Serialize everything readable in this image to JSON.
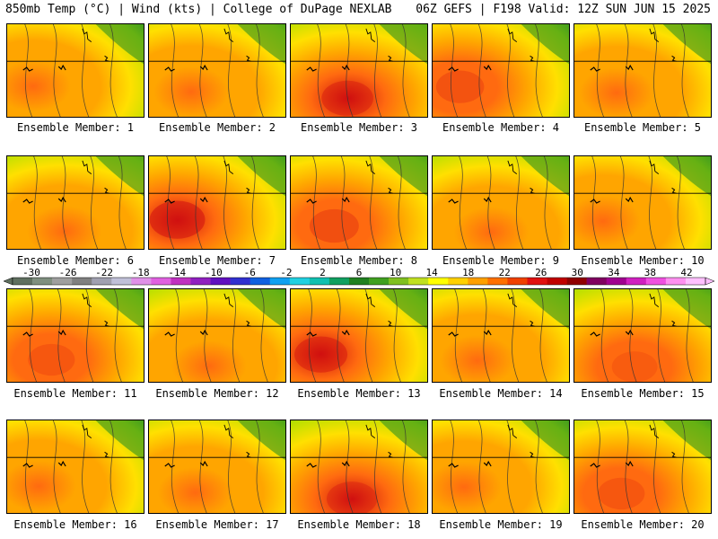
{
  "header": {
    "left": "850mb Temp (°C) | Wind (kts) | College of DuPage NEXLAB",
    "right": "06Z GEFS | F198 Valid: 12Z SUN JUN 15 2025"
  },
  "caption_prefix": "Ensemble Member: ",
  "members": [
    {
      "label": "Ensemble Member: 1",
      "warm": 0.35
    },
    {
      "label": "Ensemble Member: 2",
      "warm": 0.45
    },
    {
      "label": "Ensemble Member: 3",
      "warm": 0.8
    },
    {
      "label": "Ensemble Member: 4",
      "warm": 0.65
    },
    {
      "label": "Ensemble Member: 5",
      "warm": 0.4
    },
    {
      "label": "Ensemble Member: 6",
      "warm": 0.45
    },
    {
      "label": "Ensemble Member: 7",
      "warm": 0.95
    },
    {
      "label": "Ensemble Member: 8",
      "warm": 0.7
    },
    {
      "label": "Ensemble Member: 9",
      "warm": 0.4
    },
    {
      "label": "Ensemble Member: 10",
      "warm": 0.45
    },
    {
      "label": "Ensemble Member: 11",
      "warm": 0.6
    },
    {
      "label": "Ensemble Member: 12",
      "warm": 0.2
    },
    {
      "label": "Ensemble Member: 13",
      "warm": 0.85
    },
    {
      "label": "Ensemble Member: 14",
      "warm": 0.35
    },
    {
      "label": "Ensemble Member: 15",
      "warm": 0.55
    },
    {
      "label": "Ensemble Member: 16",
      "warm": 0.3
    },
    {
      "label": "Ensemble Member: 17",
      "warm": 0.45
    },
    {
      "label": "Ensemble Member: 18",
      "warm": 0.75
    },
    {
      "label": "Ensemble Member: 19",
      "warm": 0.45
    },
    {
      "label": "Ensemble Member: 20",
      "warm": 0.6
    }
  ],
  "colorbar": {
    "labels": [
      "-30",
      "-26",
      "-22",
      "-18",
      "-14",
      "-10",
      "-6",
      "-2",
      "2",
      "6",
      "10",
      "14",
      "18",
      "22",
      "26",
      "30",
      "34",
      "38",
      "42"
    ],
    "colors": [
      "#5f6f5f",
      "#7f8f7f",
      "#9f9f9f",
      "#808080",
      "#a0a0b0",
      "#c0c0d8",
      "#e090e8",
      "#e060e0",
      "#c030c0",
      "#9020c0",
      "#6010c0",
      "#3030d0",
      "#1060e0",
      "#10a0f0",
      "#20d0e0",
      "#10c0b0",
      "#10a060",
      "#208020",
      "#40a020",
      "#80c020",
      "#c0e020",
      "#ffff00",
      "#ffd000",
      "#ffa000",
      "#ff7000",
      "#f04000",
      "#e01010",
      "#c00000",
      "#900000",
      "#800060",
      "#a00090",
      "#d020c0",
      "#f050e0",
      "#ff90f0",
      "#ffc0ff"
    ]
  },
  "colors": {
    "hot": "#d01010",
    "warm": "#ff6a10",
    "orange": "#ffa500",
    "yellow": "#ffe000",
    "lime": "#b8e000",
    "green": "#4aa820",
    "darkgreen": "#228b22",
    "contour": "#333333"
  }
}
